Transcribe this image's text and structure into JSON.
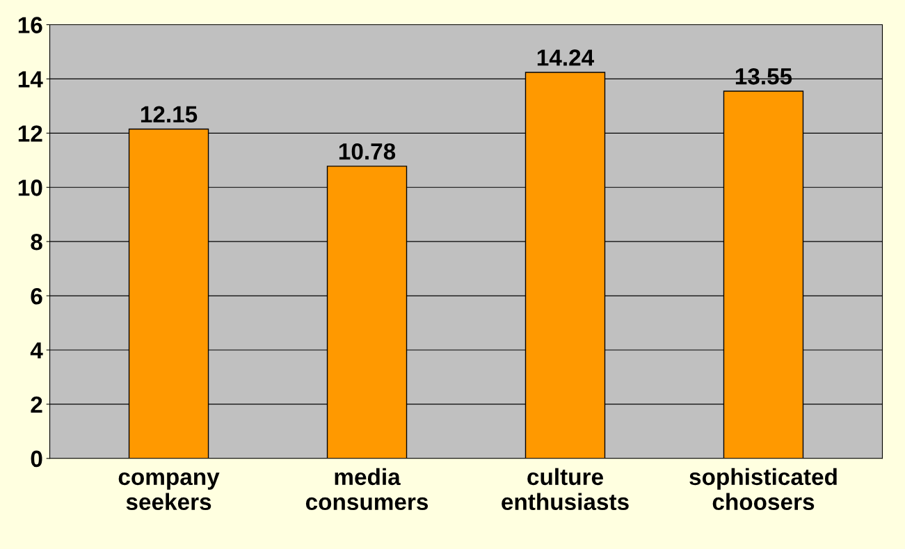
{
  "chart_data": {
    "type": "bar",
    "categories": [
      "company seekers",
      "media consumers",
      "culture enthusiasts",
      "sophisticated choosers"
    ],
    "values": [
      12.15,
      10.78,
      14.24,
      13.55
    ],
    "color": "#ff9900",
    "ylim": [
      0,
      16
    ],
    "yticks": [
      0,
      2,
      4,
      6,
      8,
      10,
      12,
      14,
      16
    ],
    "grid": "y",
    "data_labels": true
  }
}
